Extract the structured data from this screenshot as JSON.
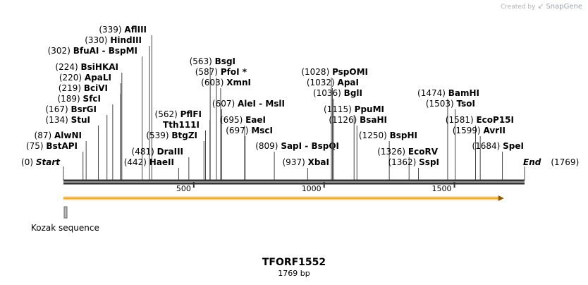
{
  "branding": {
    "created_by": "Created by",
    "product": "SnapGene"
  },
  "sequence": {
    "name": "TFORF1552",
    "length_label": "1769 bp",
    "length": 1769
  },
  "ruler": {
    "ticks": [
      500,
      1000,
      1500
    ]
  },
  "orf": {
    "start": 1,
    "end": 1690,
    "color": "#f5a623"
  },
  "features": [
    {
      "name": "Kozak sequence",
      "start": 1,
      "end": 6,
      "color": "#999999"
    }
  ],
  "sites": [
    {
      "name": "Start",
      "pos": "(0)",
      "bp": 0,
      "italic": true
    },
    {
      "name": "BstAPI",
      "pos": "(75)",
      "bp": 75
    },
    {
      "name": "AlwNI",
      "pos": "(87)",
      "bp": 87
    },
    {
      "name": "StuI",
      "pos": "(134)",
      "bp": 134
    },
    {
      "name": "BsrGI",
      "pos": "(167)",
      "bp": 167
    },
    {
      "name": "SfcI",
      "pos": "(189)",
      "bp": 189
    },
    {
      "name": "BciVI",
      "pos": "(219)",
      "bp": 219
    },
    {
      "name": "ApaLI",
      "pos": "(220)",
      "bp": 220
    },
    {
      "name": "BsiHKAI",
      "pos": "(224)",
      "bp": 224
    },
    {
      "name": "BfuAI - BspMI",
      "pos": "(302)",
      "bp": 302
    },
    {
      "name": "HindIII",
      "pos": "(330)",
      "bp": 330
    },
    {
      "name": "AflIII",
      "pos": "(339)",
      "bp": 339
    },
    {
      "name": "HaeII",
      "pos": "(442)",
      "bp": 442
    },
    {
      "name": "DraIII",
      "pos": "(481)",
      "bp": 481
    },
    {
      "name": "BtgZI",
      "pos": "(539)",
      "bp": 539
    },
    {
      "name": "Tth111I",
      "pos": "",
      "bp": 545
    },
    {
      "name": "PflFI",
      "pos": "(562)",
      "bp": 562
    },
    {
      "name": "BsgI",
      "pos": "(563)",
      "bp": 563
    },
    {
      "name": "PfoI *",
      "pos": "(587)",
      "bp": 587
    },
    {
      "name": "XmnI",
      "pos": "(603)",
      "bp": 603
    },
    {
      "name": "AleI - MslI",
      "pos": "(607)",
      "bp": 607
    },
    {
      "name": "EaeI",
      "pos": "(695)",
      "bp": 695
    },
    {
      "name": "MscI",
      "pos": "(697)",
      "bp": 697
    },
    {
      "name": "SapI - BspQI",
      "pos": "(809)",
      "bp": 809
    },
    {
      "name": "XbaI",
      "pos": "(937)",
      "bp": 937
    },
    {
      "name": "PspOMI",
      "pos": "(1028)",
      "bp": 1028
    },
    {
      "name": "ApaI",
      "pos": "(1032)",
      "bp": 1032
    },
    {
      "name": "BglI",
      "pos": "(1036)",
      "bp": 1036
    },
    {
      "name": "PpuMI",
      "pos": "(1115)",
      "bp": 1115
    },
    {
      "name": "BsaHI",
      "pos": "(1126)",
      "bp": 1126
    },
    {
      "name": "BspHI",
      "pos": "(1250)",
      "bp": 1250
    },
    {
      "name": "EcoRV",
      "pos": "(1326)",
      "bp": 1326
    },
    {
      "name": "SspI",
      "pos": "(1362)",
      "bp": 1362
    },
    {
      "name": "BamHI",
      "pos": "(1474)",
      "bp": 1474
    },
    {
      "name": "TsoI",
      "pos": "(1503)",
      "bp": 1503
    },
    {
      "name": "EcoP15I",
      "pos": "(1581)",
      "bp": 1581
    },
    {
      "name": "AvrII",
      "pos": "(1599)",
      "bp": 1599
    },
    {
      "name": "SpeI",
      "pos": "(1684)",
      "bp": 1684
    },
    {
      "name": "End",
      "pos": "(1769)",
      "bp": 1769,
      "italic": true
    }
  ]
}
